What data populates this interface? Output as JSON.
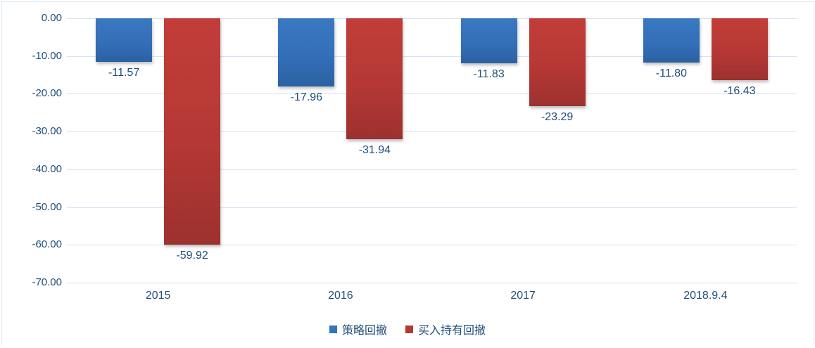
{
  "chart_data": {
    "type": "bar",
    "title": "",
    "xlabel": "",
    "ylabel": "",
    "categories": [
      "2015",
      "2016",
      "2017",
      "2018.9.4"
    ],
    "series": [
      {
        "name": "策略回撤",
        "color": "#3573bb",
        "values": [
          -11.57,
          -17.96,
          -11.83,
          -11.8
        ],
        "value_labels": [
          "-11.57",
          "-17.96",
          "-11.83",
          "-11.80"
        ]
      },
      {
        "name": "买入持有回撤",
        "color": "#b53834",
        "values": [
          -59.92,
          -31.94,
          -23.29,
          -16.43
        ],
        "value_labels": [
          "-59.92",
          "-31.94",
          "-23.29",
          "-16.43"
        ]
      }
    ],
    "ylim": [
      -70,
      0
    ],
    "ytick_step": 10,
    "yticks": [
      "0.00",
      "-10.00",
      "-20.00",
      "-30.00",
      "-40.00",
      "-50.00",
      "-60.00",
      "-70.00"
    ],
    "grid": true,
    "legend_position": "bottom"
  },
  "colors": {
    "text": "#1f4e79",
    "gridline": "#d5e1f3",
    "frame_border": "#dce6f5",
    "series_blue": "#3573bb",
    "series_red": "#b53834",
    "background": "#ffffff"
  }
}
